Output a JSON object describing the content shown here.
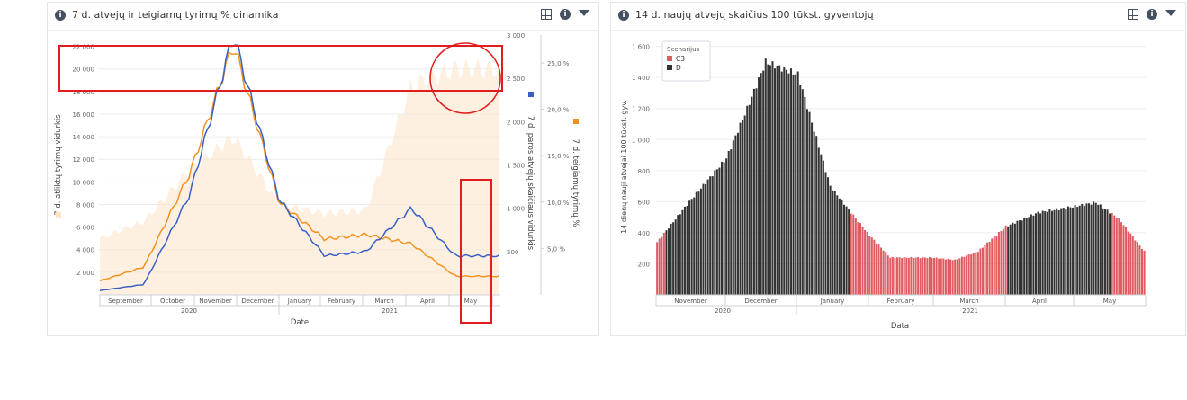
{
  "left_panel": {
    "title": "7 d. atvejų ir teigiamų tyrimų % dinamika",
    "icons": [
      "info-icon",
      "table-icon",
      "info-circle-icon",
      "filter-icon"
    ]
  },
  "right_panel": {
    "title": "14 d. naujų atvejų skaičius 100 tūkst. gyventojų",
    "icons": [
      "info-icon",
      "table-icon",
      "info-circle-icon",
      "filter-icon"
    ]
  },
  "chart_data": [
    {
      "type": "line",
      "title": "7 d. atvejų ir teigiamų tyrimų % dinamika",
      "xlabel": "Date",
      "x_month_labels": [
        "September",
        "October",
        "November",
        "December",
        "January",
        "February",
        "March",
        "April",
        "May"
      ],
      "x_year_labels": [
        "2020",
        "2021"
      ],
      "axes": {
        "left": {
          "label": "7 d. atliktų tyrimų vidurkis",
          "range": [
            0,
            23000
          ],
          "ticks": [
            "2 000",
            "4 000",
            "6 000",
            "8 000",
            "10 000",
            "12 000",
            "14 000",
            "16 000",
            "18 000",
            "20 000",
            "22 000"
          ]
        },
        "middle": {
          "label": "7 d. paros atvejų skaičiaus vidurkis",
          "range": [
            0,
            3000
          ],
          "ticks": [
            "500",
            "1 000",
            "1 500",
            "2 000",
            "2 500",
            "3 000"
          ]
        },
        "right": {
          "label": "7 d. teigiamų tyrimų %",
          "range": [
            0,
            28
          ],
          "ticks": [
            "5,0 %",
            "10,0 %",
            "15,0 %",
            "20,0 %",
            "25,0 %"
          ]
        }
      },
      "series": [
        {
          "name": "7 d. atliktų tyrimų vidurkis",
          "axis": "left",
          "color": "#fde3c6",
          "style": "area",
          "x": [
            "2020-09",
            "2020-10",
            "2020-11",
            "2020-12",
            "2021-01",
            "2021-02",
            "2021-03",
            "2021-04",
            "2021-05"
          ],
          "values": [
            5000,
            6500,
            11000,
            14000,
            8000,
            7200,
            7500,
            18500,
            20000
          ]
        },
        {
          "name": "7 d. paros atvejų skaičiaus vidurkis",
          "axis": "middle",
          "color": "#3a5fc4",
          "style": "line",
          "x": [
            "2020-09",
            "2020-10",
            "2020-11",
            "2020-12",
            "2021-01",
            "2021-02",
            "2021-03",
            "2021-04",
            "2021-05"
          ],
          "values": [
            50,
            120,
            1150,
            3000,
            1100,
            450,
            500,
            1000,
            450
          ]
        },
        {
          "name": "7 d. teigiamų tyrimų %",
          "axis": "right",
          "color": "#f29120",
          "style": "line",
          "x": [
            "2020-09",
            "2020-10",
            "2020-11",
            "2020-12",
            "2021-01",
            "2021-02",
            "2021-03",
            "2021-04",
            "2021-05"
          ],
          "values": [
            1.5,
            3.0,
            13.0,
            27.0,
            10.0,
            6.0,
            6.5,
            5.5,
            2.0
          ]
        }
      ]
    },
    {
      "type": "bar",
      "title": "14 d. naujų atvejų skaičius 100 tūkst. gyventojų",
      "xlabel": "Data",
      "ylabel": "14 dienų nauji atvejai 100 tūkst. gyv.",
      "ylim": [
        0,
        1650
      ],
      "y_ticks": [
        "200",
        "400",
        "600",
        "800",
        "1 000",
        "1 200",
        "1 400",
        "1 600"
      ],
      "x_month_labels": [
        "November",
        "December",
        "January",
        "February",
        "March",
        "April",
        "May"
      ],
      "x_year_labels": [
        "2020",
        "2021"
      ],
      "legend": {
        "title": "Scenarijus",
        "placement": "top-left",
        "items": [
          {
            "name": "C3",
            "color": "#e05a5f"
          },
          {
            "name": "D",
            "color": "#333333"
          }
        ]
      },
      "segments": [
        {
          "scenario": "C3",
          "start": "2020-11-01",
          "end": "2020-11-04"
        },
        {
          "scenario": "D",
          "start": "2020-11-05",
          "end": "2021-01-23"
        },
        {
          "scenario": "C3",
          "start": "2021-01-24",
          "end": "2021-04-01"
        },
        {
          "scenario": "D",
          "start": "2021-04-02",
          "end": "2021-05-16"
        },
        {
          "scenario": "C3",
          "start": "2021-05-17",
          "end": "2021-05-31"
        }
      ],
      "keypoints": {
        "x": [
          "2020-11-01",
          "2020-11-15",
          "2020-12-01",
          "2020-12-10",
          "2020-12-18",
          "2021-01-01",
          "2021-01-15",
          "2021-01-31",
          "2021-02-10",
          "2021-02-28",
          "2021-03-10",
          "2021-03-20",
          "2021-04-01",
          "2021-04-15",
          "2021-05-01",
          "2021-05-10",
          "2021-05-20",
          "2021-05-31"
        ],
        "values": [
          340,
          600,
          880,
          1200,
          1500,
          1420,
          700,
          400,
          240,
          240,
          225,
          280,
          440,
          530,
          570,
          595,
          490,
          280
        ]
      }
    }
  ]
}
